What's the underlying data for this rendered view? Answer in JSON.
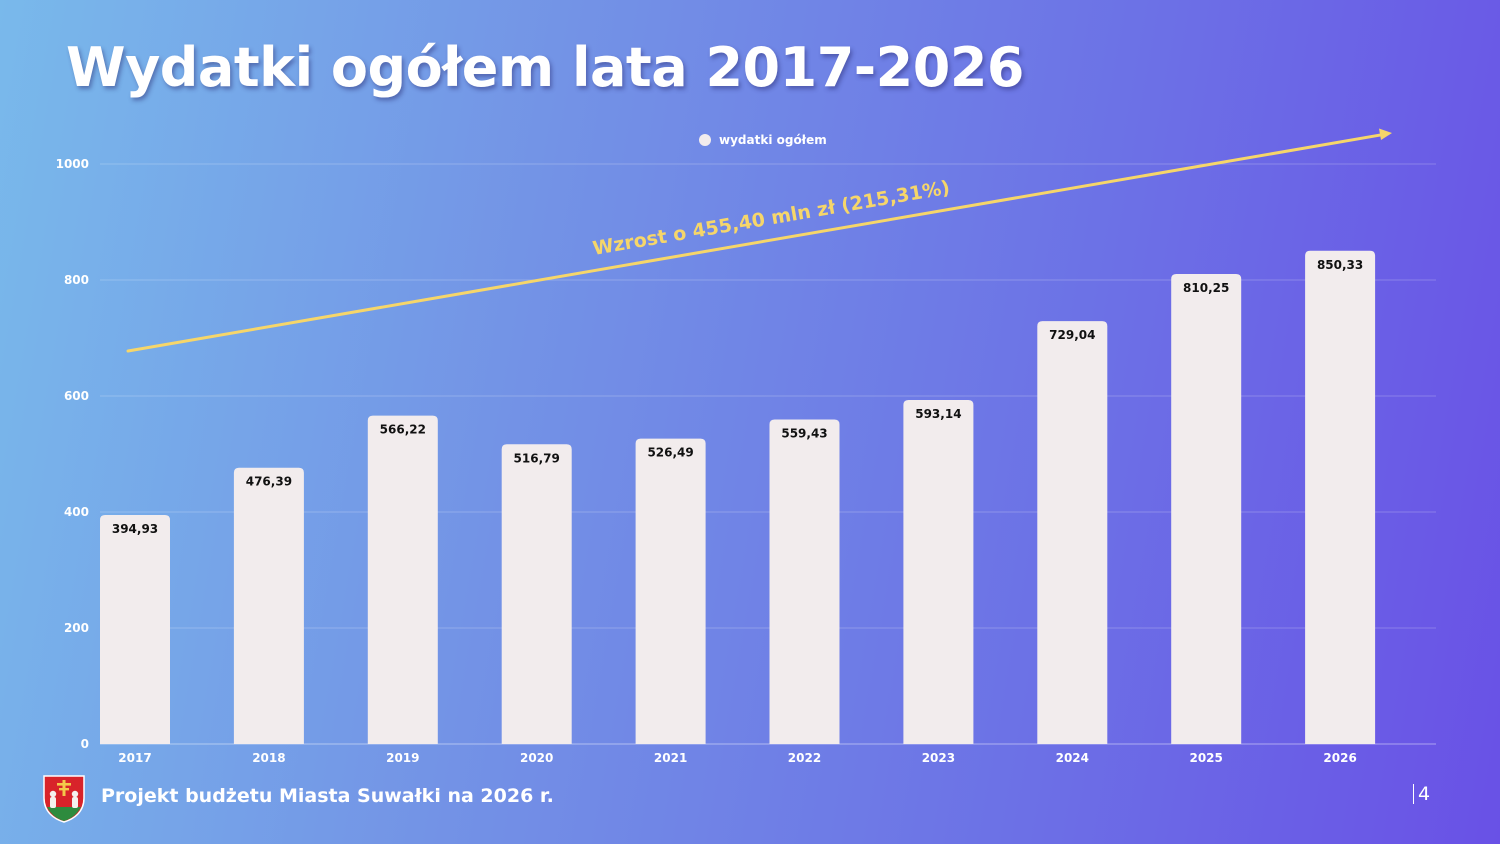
{
  "slide": {
    "title": "Wydatki ogółem lata 2017-2026",
    "footer": "Projekt budżetu Miasta Suwałki na 2026 r.",
    "page_number": "4",
    "logo": "suwalki-coat-of-arms"
  },
  "chart_data": {
    "type": "bar",
    "categories": [
      "2017",
      "2018",
      "2019",
      "2020",
      "2021",
      "2022",
      "2023",
      "2024",
      "2025",
      "2026"
    ],
    "series": [
      {
        "name": "wydatki ogółem",
        "values": [
          394.93,
          476.39,
          566.22,
          516.79,
          526.49,
          559.43,
          593.14,
          729.04,
          810.25,
          850.33
        ],
        "labels": [
          "394,93",
          "476,39",
          "566,22",
          "516,79",
          "526,49",
          "559,43",
          "593,14",
          "729,04",
          "810,25",
          "850,33"
        ]
      }
    ],
    "y_ticks": [
      "0",
      "200",
      "400",
      "600",
      "800",
      "1000"
    ],
    "ylim": [
      0,
      1000
    ],
    "grid": true,
    "legend": "top-center",
    "annotation": "Wzrost o 455,40 mln zł (215,31%)",
    "colors": {
      "bar": "#f2eced",
      "arrow": "#f6d66a",
      "grid": "#ffffff",
      "legend_marker": "#f2eced"
    }
  }
}
